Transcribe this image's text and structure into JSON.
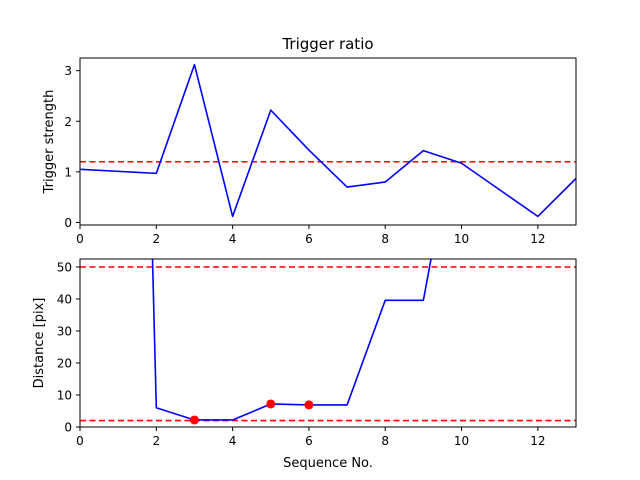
{
  "chart_data": [
    {
      "type": "line",
      "title": "Trigger ratio",
      "xlabel": "Sequence No.",
      "ylabel": "Trigger strength",
      "xlim": [
        0,
        13
      ],
      "ylim": [
        -0.05,
        3.25
      ],
      "xticks": [
        "0",
        "2",
        "4",
        "6",
        "8",
        "10",
        "12"
      ],
      "yticks": [
        "0",
        "1",
        "2",
        "3"
      ],
      "grid": false,
      "series": [
        {
          "color": "#0000ff",
          "x": [
            0,
            2,
            3,
            4,
            5,
            6,
            7,
            8,
            9,
            10,
            12,
            13
          ],
          "y": [
            1.05,
            0.97,
            3.12,
            0.12,
            2.22,
            1.43,
            0.7,
            0.8,
            1.42,
            1.17,
            0.12,
            0.87
          ]
        }
      ],
      "hlines": [
        {
          "y": 1.2,
          "color": "#ff0000",
          "style": "dashed"
        }
      ]
    },
    {
      "type": "line",
      "title": "",
      "xlabel": "Sequence No.",
      "ylabel": "Distance [pix]",
      "xlim": [
        0,
        13
      ],
      "ylim": [
        0,
        52.5
      ],
      "xticks": [
        "0",
        "2",
        "4",
        "6",
        "8",
        "10",
        "12"
      ],
      "yticks": [
        "0",
        "10",
        "20",
        "30",
        "40",
        "50"
      ],
      "grid": false,
      "series": [
        {
          "color": "#0000ff",
          "x": [
            1.9,
            2,
            3,
            4,
            5,
            6,
            7,
            8,
            9,
            9.2
          ],
          "y": [
            52.5,
            6,
            2.2,
            2.2,
            7.2,
            6.9,
            6.9,
            39.6,
            39.6,
            52.5
          ]
        }
      ],
      "points": {
        "color": "#ff0000",
        "x": [
          3,
          5,
          6
        ],
        "y": [
          2.2,
          7.2,
          6.9
        ]
      },
      "hlines": [
        {
          "y": 50,
          "color": "#ff0000",
          "style": "dashed"
        },
        {
          "y": 2,
          "color": "#ff0000",
          "style": "dashed"
        }
      ]
    }
  ]
}
